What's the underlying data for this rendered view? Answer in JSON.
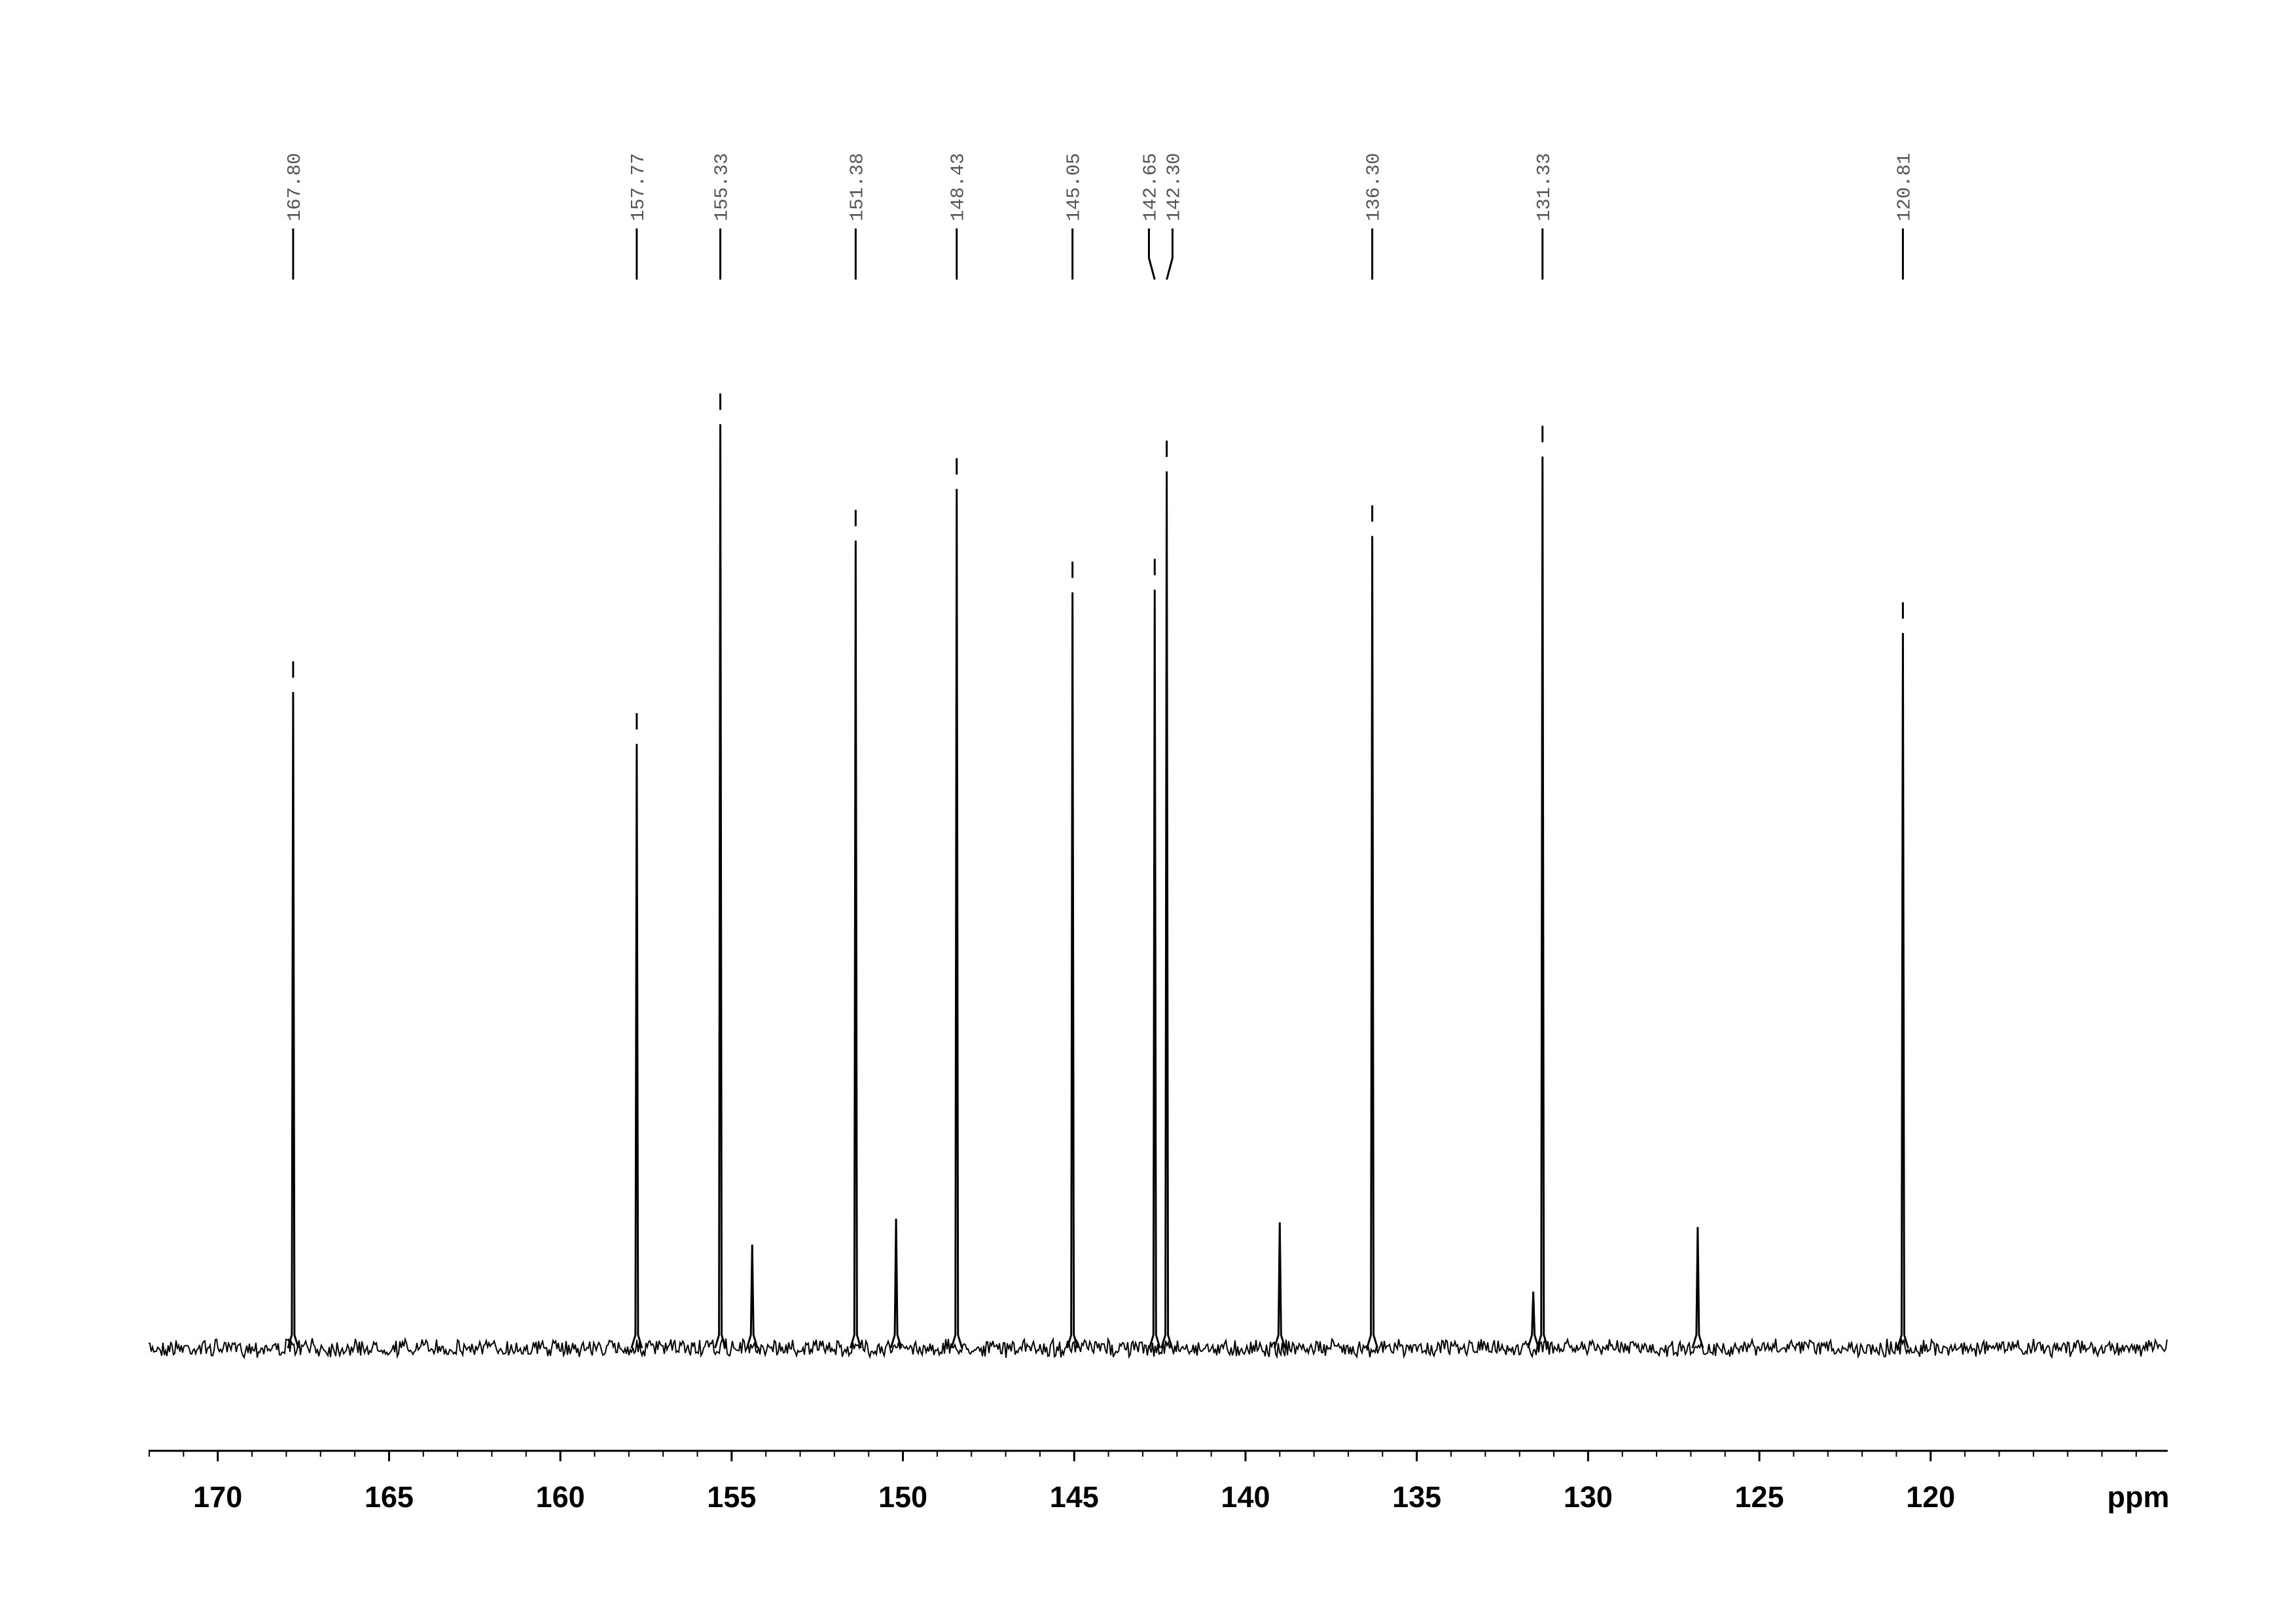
{
  "chart_data": {
    "type": "spectrum",
    "x_label": "ppm",
    "xlim": [
      172.02,
      113.08
    ],
    "xticks": [
      170,
      165,
      160,
      155,
      150,
      145,
      140,
      135,
      130,
      125,
      120
    ],
    "x": [
      167.8,
      157.77,
      155.33,
      154.4,
      151.38,
      150.2,
      148.43,
      145.05,
      142.65,
      142.3,
      139.0,
      136.3,
      131.6,
      131.33,
      126.8,
      120.81
    ],
    "values": [
      71.0,
      65.4,
      100,
      11.2,
      87.4,
      14.0,
      93.0,
      81.8,
      82.1,
      94.9,
      13.6,
      87.9,
      6.1,
      96.5,
      13.1,
      77.4
    ],
    "ylim": [
      0,
      100
    ],
    "color": "#000000",
    "peak_labels": [
      {
        "value": 167.8,
        "label": "167.80"
      },
      {
        "value": 157.77,
        "label": "157.77"
      },
      {
        "value": 155.33,
        "label": "155.33"
      },
      {
        "value": 151.38,
        "label": "151.38"
      },
      {
        "value": 148.43,
        "label": "148.43"
      },
      {
        "value": 145.05,
        "label": "145.05"
      },
      {
        "value": 142.65,
        "label": "142.65"
      },
      {
        "value": 142.3,
        "label": "142.30"
      },
      {
        "value": 136.3,
        "label": "136.30"
      },
      {
        "value": 131.33,
        "label": "131.33"
      },
      {
        "value": 120.81,
        "label": "120.81"
      }
    ]
  }
}
